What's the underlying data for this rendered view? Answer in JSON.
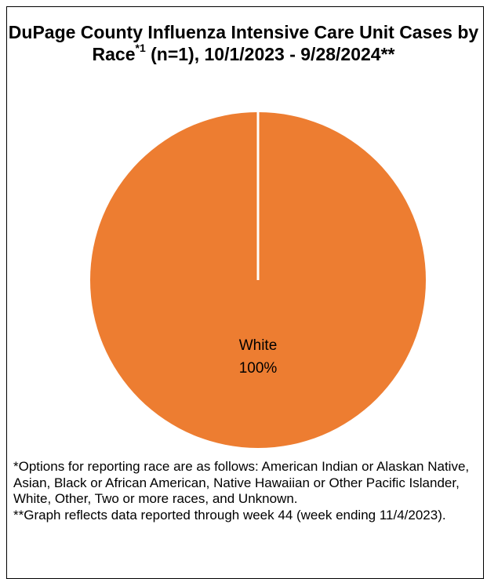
{
  "chart_data": {
    "type": "pie",
    "title_main": "DuPage County Influenza Intensive Care Unit Cases by Race",
    "title_sup": "*1",
    "title_rest": " (n=1), 10/1/2023 - 9/28/2024**",
    "slices": [
      {
        "label": "White",
        "value": 100,
        "display": "100%",
        "color": "#ed7d31"
      }
    ],
    "startAngle": 0
  },
  "footnotes": {
    "note1": "*Options for reporting race are as follows: American Indian or Alaskan Native, Asian, Black or African American, Native Hawaiian or Other Pacific Islander, White, Other, Two or more races, and Unknown.",
    "note2": "**Graph reflects data reported through week 44 (week ending 11/4/2023)."
  }
}
